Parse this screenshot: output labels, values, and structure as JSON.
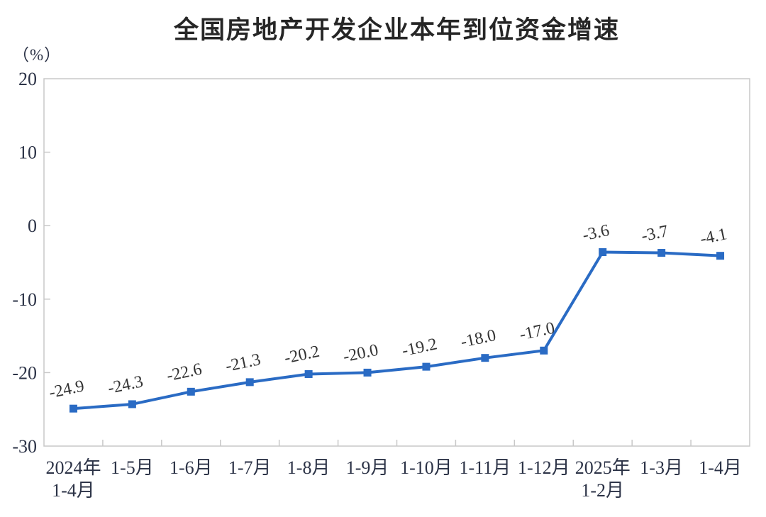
{
  "title": "全国房地产开发企业本年到位资金增速",
  "unit_label": "（%）",
  "chart_data": {
    "type": "line",
    "title": "全国房地产开发企业本年到位资金增速",
    "ylabel": "（%）",
    "xlabel": "",
    "categories": [
      "2024年\n1-4月",
      "1-5月",
      "1-6月",
      "1-7月",
      "1-8月",
      "1-9月",
      "1-10月",
      "1-11月",
      "1-12月",
      "2025年\n1-2月",
      "1-3月",
      "1-4月"
    ],
    "values": [
      -24.9,
      -24.3,
      -22.6,
      -21.3,
      -20.2,
      -20.0,
      -19.2,
      -18.0,
      -17.0,
      -3.6,
      -3.7,
      -4.1
    ],
    "data_labels": [
      "-24.9",
      "-24.3",
      "-22.6",
      "-21.3",
      "-20.2",
      "-20.0",
      "-19.2",
      "-18.0",
      "-17.0",
      "-3.6",
      "-3.7",
      "-4.1"
    ],
    "ylim": [
      -30,
      20
    ],
    "ytick_step": 10,
    "yticks": [
      "20",
      "10",
      "0",
      "-10",
      "-20",
      "-30"
    ],
    "grid": false,
    "legend": "none",
    "marker": "square",
    "colors": {
      "line": "#2A6BC4",
      "axis": "#C8C8C8",
      "tick_text": "#2B3246",
      "data_label_text": "#333333",
      "title_text": "#262626",
      "background": "#FFFFFF"
    }
  }
}
